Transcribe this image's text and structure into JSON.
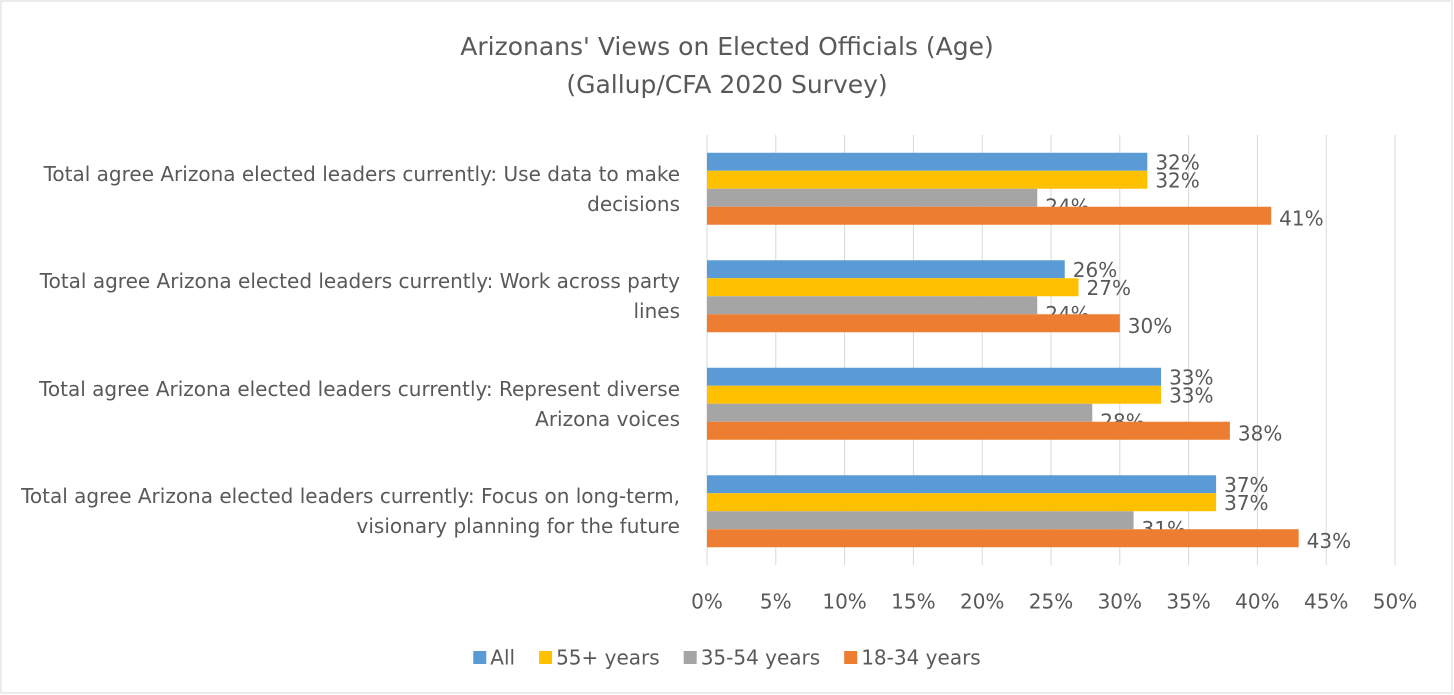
{
  "chart_data": {
    "type": "bar",
    "orientation": "horizontal",
    "title": "Arizonans' Views on Elected Officials (Age)",
    "subtitle": "(Gallup/CFA 2020 Survey)",
    "categories": [
      "Total agree Arizona elected leaders currently: Use data to make decisions",
      "Total agree Arizona elected leaders currently: Work across party lines",
      "Total agree Arizona elected leaders currently: Represent diverse Arizona voices",
      "Total agree Arizona elected leaders currently: Focus on long-term, visionary planning for the future"
    ],
    "series": [
      {
        "name": "All",
        "color": "#5b9bd5",
        "values": [
          32,
          26,
          33,
          37
        ],
        "value_labels": [
          "32%",
          "26%",
          "33%",
          "37%"
        ]
      },
      {
        "name": "55+ years",
        "color": "#ffc000",
        "values": [
          32,
          27,
          33,
          37
        ],
        "value_labels": [
          "32%",
          "27%",
          "33%",
          "37%"
        ]
      },
      {
        "name": "35-54 years",
        "color": "#a5a5a5",
        "values": [
          24,
          24,
          28,
          31
        ],
        "value_labels": [
          "24%",
          "24%",
          "28%",
          "31%"
        ]
      },
      {
        "name": "18-34 years",
        "color": "#ed7d31",
        "values": [
          41,
          30,
          38,
          43
        ],
        "value_labels": [
          "41%",
          "30%",
          "38%",
          "43%"
        ]
      }
    ],
    "xlim": [
      0,
      50
    ],
    "xticks": [
      {
        "value": 0,
        "label": "0%"
      },
      {
        "value": 5,
        "label": "5%"
      },
      {
        "value": 10,
        "label": "10%"
      },
      {
        "value": 15,
        "label": "15%"
      },
      {
        "value": 20,
        "label": "20%"
      },
      {
        "value": 25,
        "label": "25%"
      },
      {
        "value": 30,
        "label": "30%"
      },
      {
        "value": 35,
        "label": "35%"
      },
      {
        "value": 40,
        "label": "40%"
      },
      {
        "value": 45,
        "label": "45%"
      },
      {
        "value": 50,
        "label": "50%"
      }
    ],
    "grid": true,
    "legend": "bottom"
  }
}
